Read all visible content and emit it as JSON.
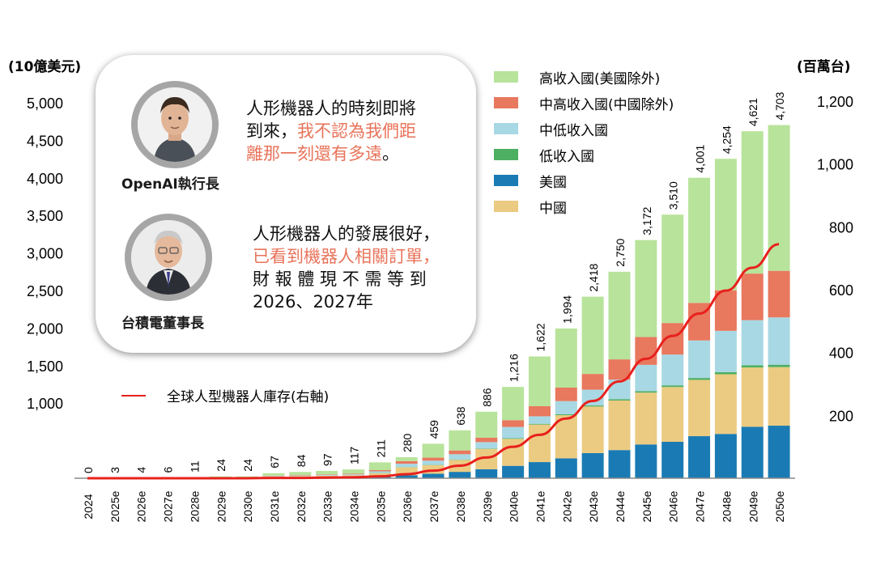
{
  "units": {
    "left": "(10億美元)",
    "right": "(百萬台)"
  },
  "legend": [
    {
      "label": "高收入國(美國除外)",
      "color": "#b8e39b"
    },
    {
      "label": "中高收入國(中國除外)",
      "color": "#e8785e"
    },
    {
      "label": "中低收入國",
      "color": "#a8d8e3"
    },
    {
      "label": "低收入國",
      "color": "#4caf62"
    },
    {
      "label": "美國",
      "color": "#1a7bb4"
    },
    {
      "label": "中國",
      "color": "#ebcb82"
    }
  ],
  "line_legend": {
    "label": "全球人型機器人庫存(右軸)",
    "color": "#e8211c"
  },
  "quote1": {
    "caption": "OpenAI執行長",
    "line1": "人形機器人的時刻即將",
    "line2_a": "到來，",
    "line2_b": "我不認為我們距",
    "line3": "離那一刻還有多遠。"
  },
  "quote2": {
    "caption": "台積電董事長",
    "line1": "人形機器人的發展很好，",
    "line2": "已看到機器人相關訂單，",
    "line3": "財 報 體 現 不 需 等 到",
    "line4": "2026、2027年"
  },
  "chart_data": {
    "type": "bar",
    "stacked": true,
    "categories": [
      "2024",
      "2025e",
      "2026e",
      "2027e",
      "2028e",
      "2029e",
      "2030e",
      "2031e",
      "2032e",
      "2033e",
      "2034e",
      "2035e",
      "2036e",
      "2037e",
      "2038e",
      "2039e",
      "2040e",
      "2041e",
      "2042e",
      "2043e",
      "2044e",
      "2045e",
      "2046e",
      "2047e",
      "2048e",
      "2049e",
      "2050e"
    ],
    "total_labels": [
      "0",
      "3",
      "4",
      "6",
      "11",
      "24",
      "24",
      "67",
      "84",
      "97",
      "117",
      "211",
      "280",
      "459",
      "638",
      "886",
      "1,216",
      "1,622",
      "1,994",
      "2,418",
      "2,750",
      "3,172",
      "3,510",
      "4,001",
      "4,254",
      "4,621",
      "4,703"
    ],
    "series": [
      {
        "name": "美國",
        "color": "#1a7bb4",
        "values": [
          0,
          0,
          0,
          0,
          0,
          1,
          1,
          6,
          7,
          8,
          10,
          18,
          40,
          60,
          85,
          120,
          165,
          215,
          265,
          335,
          375,
          450,
          485,
          560,
          590,
          685,
          700
        ]
      },
      {
        "name": "中國",
        "color": "#ebcb82",
        "values": [
          0,
          1,
          2,
          3,
          5,
          11,
          11,
          18,
          22,
          26,
          30,
          50,
          105,
          115,
          160,
          270,
          360,
          500,
          575,
          620,
          660,
          690,
          730,
          750,
          795,
          790,
          780
        ]
      },
      {
        "name": "低收入國",
        "color": "#4caf62",
        "values": [
          0,
          0,
          0,
          0,
          0,
          0,
          0,
          0,
          0,
          0,
          0,
          2,
          3,
          4,
          5,
          6,
          8,
          10,
          12,
          14,
          18,
          20,
          22,
          25,
          28,
          30,
          32
        ]
      },
      {
        "name": "中低收入國",
        "color": "#a8d8e3",
        "values": [
          0,
          0,
          0,
          0,
          1,
          2,
          2,
          6,
          8,
          10,
          12,
          22,
          45,
          55,
          70,
          85,
          150,
          100,
          175,
          210,
          260,
          350,
          410,
          500,
          550,
          600,
          630
        ]
      },
      {
        "name": "中高收入國(中國除外)",
        "color": "#e8785e",
        "values": [
          0,
          0,
          0,
          0,
          1,
          2,
          2,
          5,
          6,
          7,
          9,
          16,
          35,
          40,
          50,
          60,
          90,
          135,
          180,
          210,
          270,
          370,
          420,
          500,
          540,
          620,
          620
        ]
      },
      {
        "name": "高收入國(美國除外)",
        "color": "#b8e39b",
        "values": [
          0,
          2,
          2,
          3,
          4,
          8,
          8,
          32,
          41,
          46,
          56,
          103,
          52,
          185,
          268,
          345,
          443,
          662,
          787,
          1029,
          1167,
          1292,
          1443,
          1666,
          1751,
          1896,
          1941
        ]
      }
    ],
    "line": {
      "name": "全球人型機器人庫存(右軸)",
      "axis": "right",
      "color": "#e8211c",
      "values": [
        0,
        0,
        0,
        0,
        0,
        0,
        0,
        1,
        1,
        2,
        3,
        6,
        13,
        24,
        40,
        66,
        100,
        138,
        190,
        246,
        308,
        380,
        453,
        524,
        597,
        670,
        745
      ]
    },
    "y_left": {
      "ticks": [
        "1,000",
        "1,500",
        "2,000",
        "2,500",
        "3,000",
        "3,500",
        "4,000",
        "4,500",
        "5,000"
      ],
      "tick_values": [
        1000,
        1500,
        2000,
        2500,
        3000,
        3500,
        4000,
        4500,
        5000
      ],
      "ylim": [
        0,
        5100
      ]
    },
    "y_right": {
      "ticks": [
        "200",
        "400",
        "600",
        "800",
        "1,000",
        "1,200"
      ],
      "tick_values": [
        200,
        400,
        600,
        800,
        1000,
        1200
      ],
      "ylim": [
        0,
        1200
      ]
    }
  }
}
